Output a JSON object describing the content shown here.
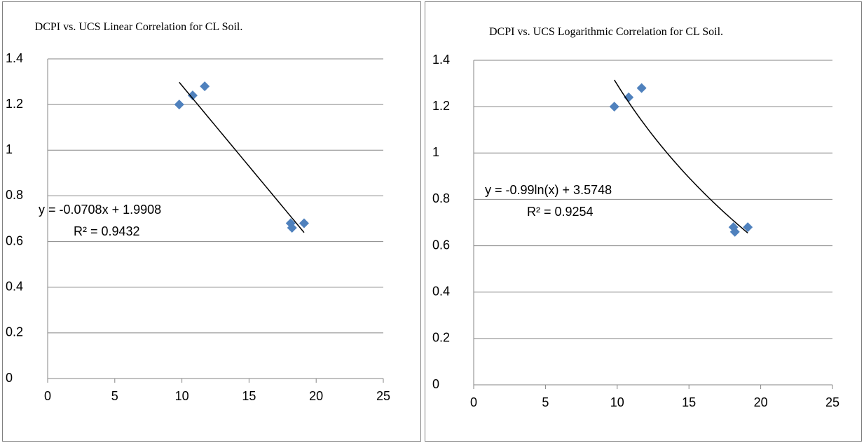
{
  "chart_data": [
    {
      "type": "scatter",
      "title": "DCPI vs. UCS Linear Correlation for CL Soil.",
      "series": [
        {
          "color": "#4f81bd",
          "x": [
            9.8,
            10.8,
            11.7,
            18.1,
            18.2,
            19.1
          ],
          "values": [
            1.2,
            1.24,
            1.28,
            0.68,
            0.66,
            0.68
          ]
        }
      ],
      "xlim": [
        0,
        25
      ],
      "xticks": [
        0,
        5,
        10,
        15,
        20,
        25
      ],
      "ylim": [
        0,
        1.4
      ],
      "yticks": [
        0,
        0.2,
        0.4,
        0.6,
        0.8,
        1,
        1.2,
        1.4
      ],
      "grid": true,
      "trendline": {
        "type": "linear",
        "equation": "y = -0.0708x + 1.9908",
        "r_squared": "R² = 0.9432"
      }
    },
    {
      "type": "scatter",
      "title": "DCPI vs. UCS Logarithmic Correlation for CL Soil.",
      "series": [
        {
          "color": "#4f81bd",
          "x": [
            9.8,
            10.8,
            11.7,
            18.1,
            18.2,
            19.1
          ],
          "values": [
            1.2,
            1.24,
            1.28,
            0.68,
            0.66,
            0.68
          ]
        }
      ],
      "xlim": [
        0,
        25
      ],
      "xticks": [
        0,
        5,
        10,
        15,
        20,
        25
      ],
      "ylim": [
        0,
        1.4
      ],
      "yticks": [
        0,
        0.2,
        0.4,
        0.6,
        0.8,
        1,
        1.2,
        1.4
      ],
      "grid": true,
      "trendline": {
        "type": "logarithmic",
        "equation": "y = -0.99ln(x) + 3.5748",
        "r_squared": "R² = 0.9254"
      }
    }
  ]
}
